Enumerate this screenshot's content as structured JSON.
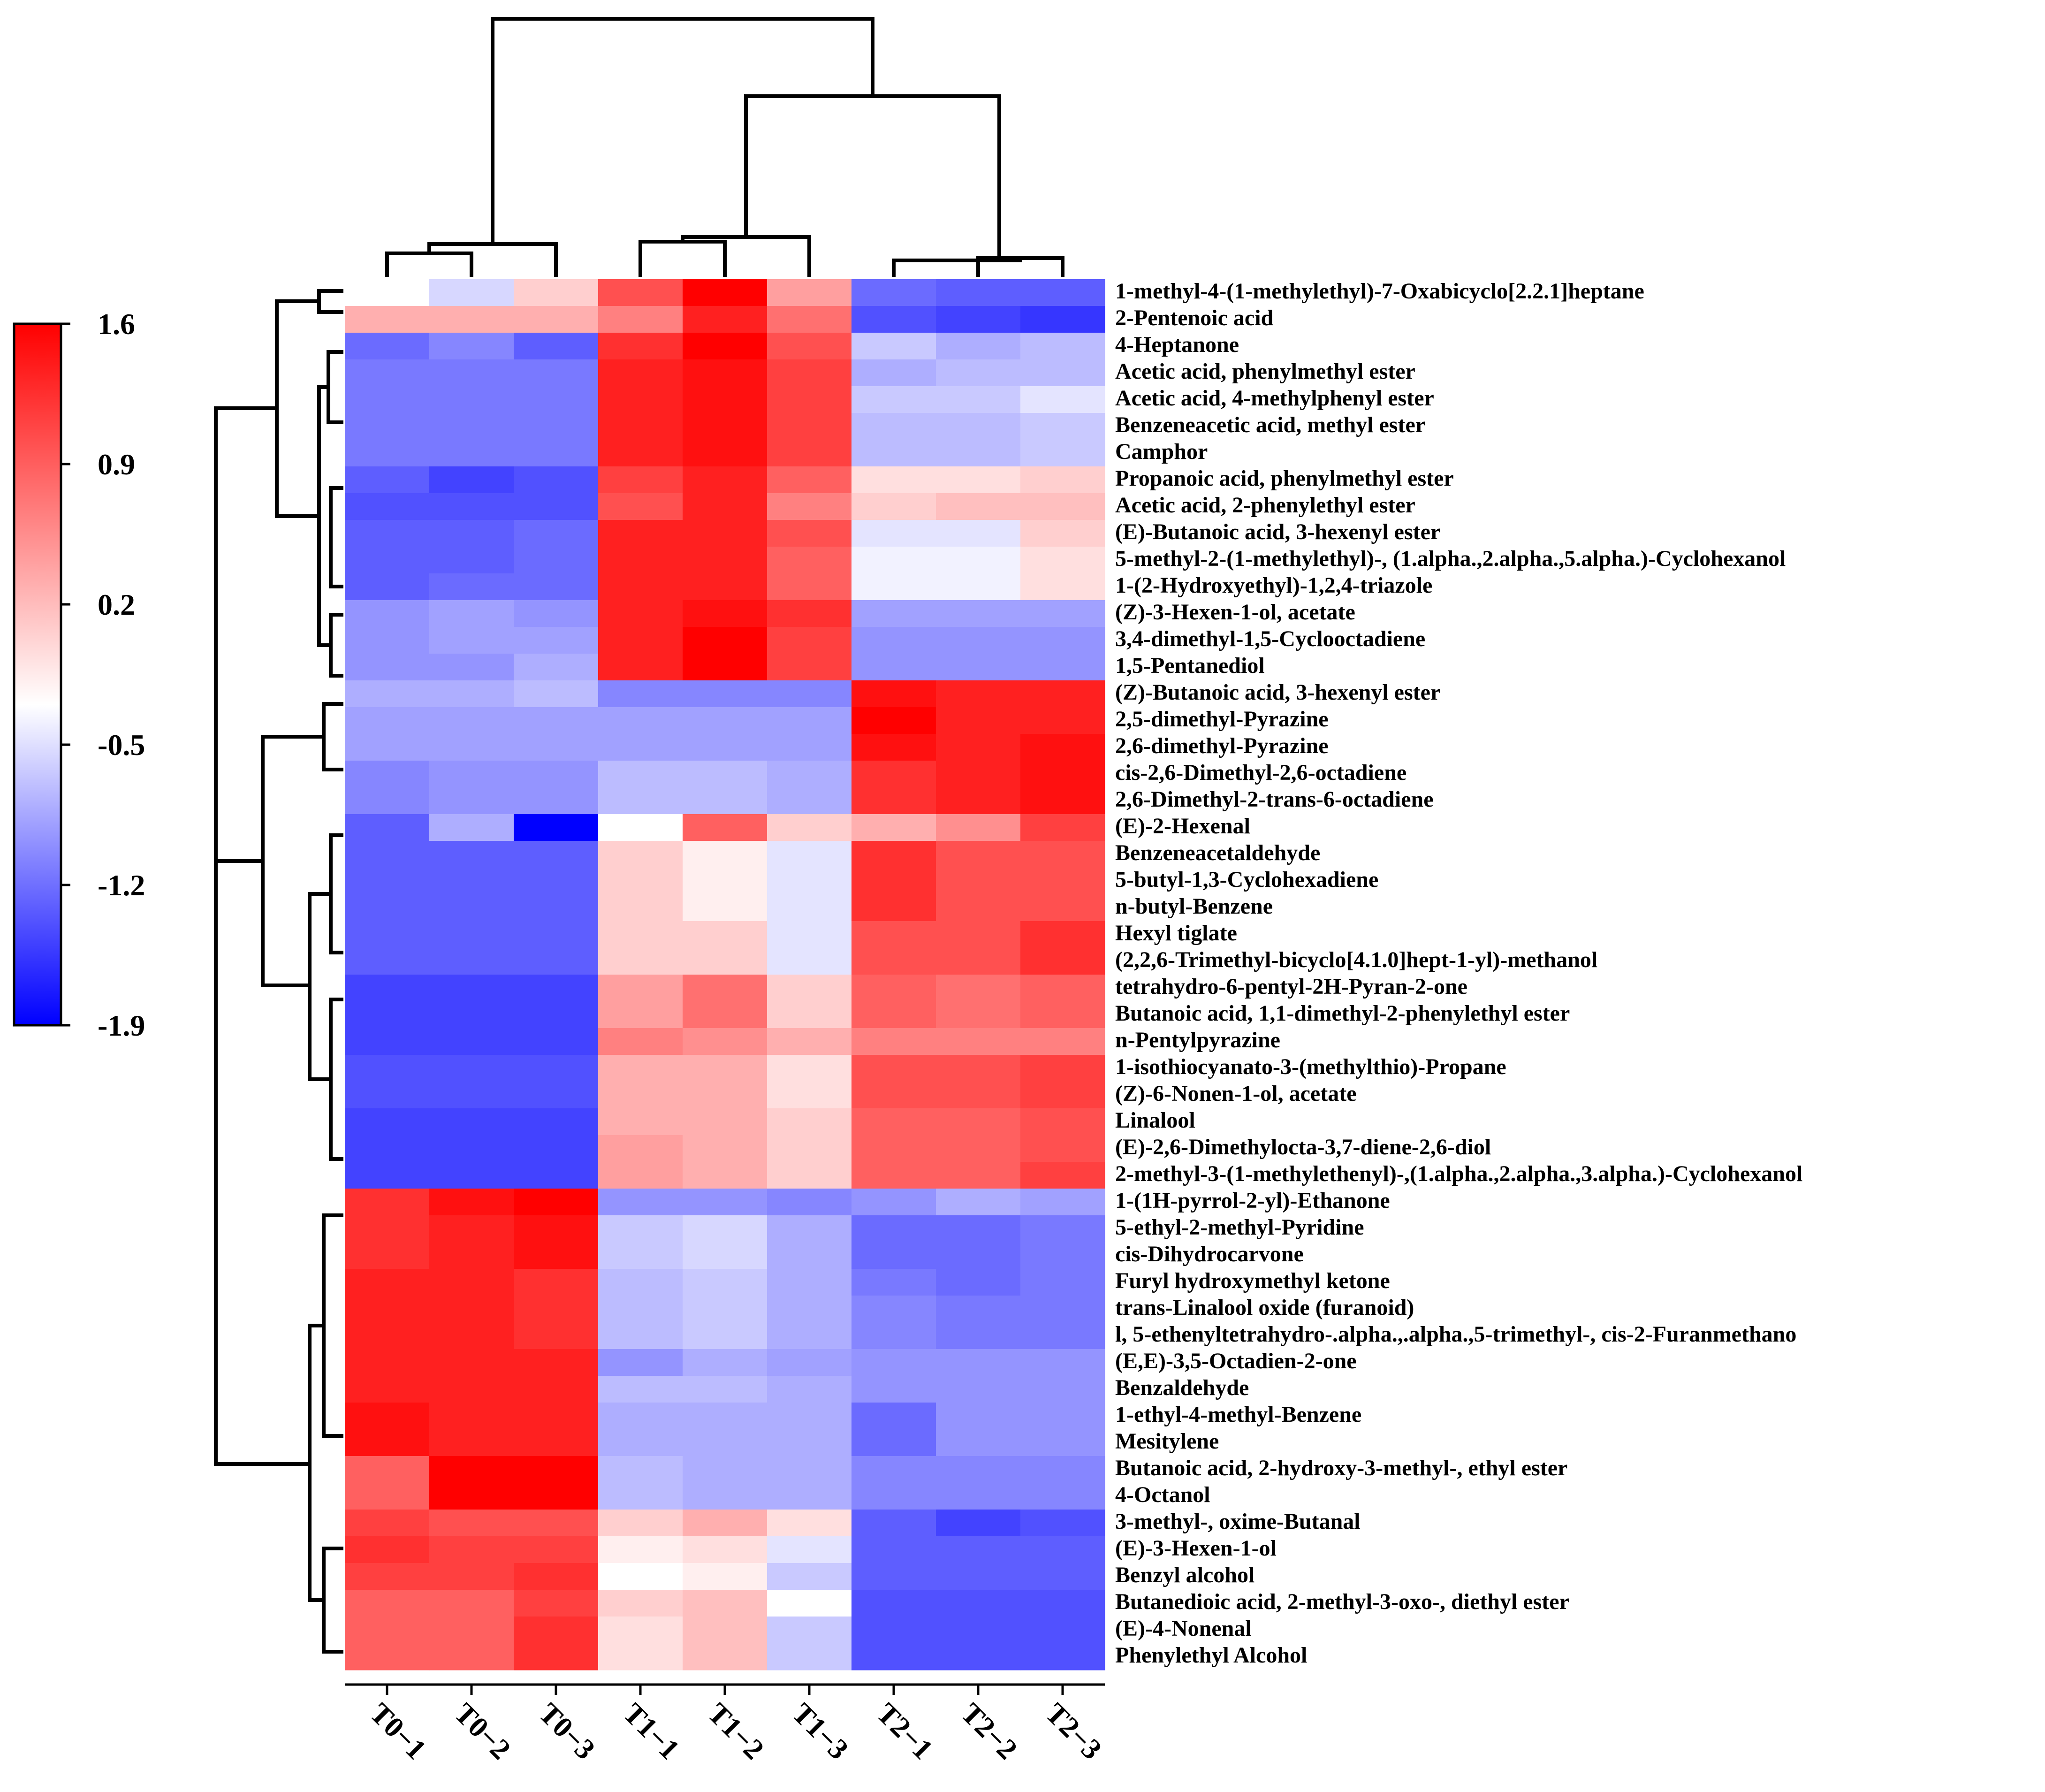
{
  "chart_data": {
    "type": "heatmap",
    "title": "",
    "columns": [
      "T0−1",
      "T0−2",
      "T0−3",
      "T1−1",
      "T1−2",
      "T1−3",
      "T2−1",
      "T2−2",
      "T2−3"
    ],
    "rows": [
      "1-methyl-4-(1-methylethyl)-7-Oxabicyclo[2.2.1]heptane",
      "2-Pentenoic acid",
      "4-Heptanone",
      "Acetic acid, phenylmethyl ester",
      "Acetic acid, 4-methylphenyl ester",
      "Benzeneacetic acid, methyl ester",
      "Camphor",
      "Propanoic acid, phenylmethyl ester",
      "Acetic acid, 2-phenylethyl ester",
      "(E)-Butanoic acid, 3-hexenyl ester",
      "5-methyl-2-(1-methylethyl)-, (1.alpha.,2.alpha.,5.alpha.)-Cyclohexanol",
      "1-(2-Hydroxyethyl)-1,2,4-triazole",
      "(Z)-3-Hexen-1-ol, acetate",
      "3,4-dimethyl-1,5-Cyclooctadiene",
      "1,5-Pentanediol",
      "(Z)-Butanoic acid, 3-hexenyl ester",
      "2,5-dimethyl-Pyrazine",
      "2,6-dimethyl-Pyrazine",
      "cis-2,6-Dimethyl-2,6-octadiene",
      "2,6-Dimethyl-2-trans-6-octadiene",
      "(E)-2-Hexenal",
      "Benzeneacetaldehyde",
      "5-butyl-1,3-Cyclohexadiene",
      "n-butyl-Benzene",
      "Hexyl tiglate",
      "(2,2,6-Trimethyl-bicyclo[4.1.0]hept-1-yl)-methanol",
      "tetrahydro-6-pentyl-2H-Pyran-2-one",
      "Butanoic acid, 1,1-dimethyl-2-phenylethyl ester",
      "n-Pentylpyrazine",
      "1-isothiocyanato-3-(methylthio)-Propane",
      "(Z)-6-Nonen-1-ol, acetate",
      "Linalool",
      "(E)-2,6-Dimethylocta-3,7-diene-2,6-diol",
      "2-methyl-3-(1-methylethenyl)-,(1.alpha.,2.alpha.,3.alpha.)-Cyclohexanol",
      "1-(1H-pyrrol-2-yl)-Ethanone",
      "5-ethyl-2-methyl-Pyridine",
      "cis-Dihydrocarvone",
      "Furyl hydroxymethyl ketone",
      "trans-Linalool oxide (furanoid)",
      "l, 5-ethenyltetrahydro-.alpha.,.alpha.,5-trimethyl-, cis-2-Furanmethano",
      "(E,E)-3,5-Octadien-2-one",
      "Benzaldehyde",
      "1-ethyl-4-methyl-Benzene",
      "Mesitylene",
      "Butanoic acid, 2-hydroxy-3-methyl-, ethyl ester",
      "4-Octanol",
      "3-methyl-, oxime-Butanal",
      "(E)-3-Hexen-1-ol",
      "Benzyl alcohol",
      "Butanedioic acid, 2-methyl-3-oxo-, diethyl ester",
      "(E)-4-Nonenal",
      "Phenylethyl Alcohol"
    ],
    "values": [
      [
        0.0,
        -0.3,
        0.3,
        1.1,
        1.6,
        0.6,
        -1.1,
        -1.2,
        -1.2
      ],
      [
        0.5,
        0.5,
        0.5,
        0.8,
        1.4,
        0.9,
        -1.3,
        -1.4,
        -1.5
      ],
      [
        -1.1,
        -0.9,
        -1.2,
        1.3,
        1.6,
        1.1,
        -0.4,
        -0.6,
        -0.5
      ],
      [
        -1.0,
        -1.0,
        -1.0,
        1.4,
        1.5,
        1.2,
        -0.6,
        -0.5,
        -0.5
      ],
      [
        -1.0,
        -1.0,
        -1.0,
        1.4,
        1.5,
        1.2,
        -0.4,
        -0.4,
        -0.2
      ],
      [
        -1.0,
        -1.0,
        -1.0,
        1.4,
        1.5,
        1.2,
        -0.5,
        -0.5,
        -0.4
      ],
      [
        -1.0,
        -1.0,
        -1.0,
        1.4,
        1.5,
        1.2,
        -0.5,
        -0.5,
        -0.4
      ],
      [
        -1.2,
        -1.4,
        -1.3,
        1.2,
        1.4,
        1.0,
        0.2,
        0.2,
        0.3
      ],
      [
        -1.3,
        -1.3,
        -1.3,
        1.1,
        1.4,
        0.8,
        0.3,
        0.4,
        0.4
      ],
      [
        -1.2,
        -1.2,
        -1.1,
        1.4,
        1.4,
        1.1,
        -0.2,
        -0.2,
        0.3
      ],
      [
        -1.2,
        -1.2,
        -1.1,
        1.4,
        1.4,
        1.0,
        -0.1,
        -0.1,
        0.2
      ],
      [
        -1.2,
        -1.1,
        -1.1,
        1.4,
        1.4,
        1.0,
        -0.1,
        -0.1,
        0.2
      ],
      [
        -0.8,
        -0.7,
        -0.8,
        1.4,
        1.5,
        1.3,
        -0.7,
        -0.7,
        -0.7
      ],
      [
        -0.8,
        -0.7,
        -0.7,
        1.4,
        1.6,
        1.2,
        -0.8,
        -0.8,
        -0.8
      ],
      [
        -0.8,
        -0.8,
        -0.6,
        1.4,
        1.6,
        1.2,
        -0.8,
        -0.8,
        -0.8
      ],
      [
        -0.6,
        -0.6,
        -0.5,
        -0.9,
        -0.9,
        -0.9,
        1.5,
        1.4,
        1.4
      ],
      [
        -0.7,
        -0.7,
        -0.7,
        -0.7,
        -0.7,
        -0.7,
        1.6,
        1.4,
        1.4
      ],
      [
        -0.7,
        -0.7,
        -0.7,
        -0.7,
        -0.7,
        -0.7,
        1.5,
        1.4,
        1.5
      ],
      [
        -0.9,
        -0.8,
        -0.8,
        -0.5,
        -0.5,
        -0.6,
        1.3,
        1.4,
        1.5
      ],
      [
        -0.9,
        -0.8,
        -0.8,
        -0.5,
        -0.5,
        -0.6,
        1.3,
        1.4,
        1.5
      ],
      [
        -1.2,
        -0.6,
        -1.9,
        0.0,
        1.0,
        0.3,
        0.5,
        0.7,
        1.2
      ],
      [
        -1.2,
        -1.2,
        -1.2,
        0.3,
        0.1,
        -0.2,
        1.3,
        1.1,
        1.1
      ],
      [
        -1.2,
        -1.2,
        -1.2,
        0.3,
        0.1,
        -0.2,
        1.3,
        1.1,
        1.1
      ],
      [
        -1.2,
        -1.2,
        -1.2,
        0.3,
        0.1,
        -0.2,
        1.3,
        1.1,
        1.1
      ],
      [
        -1.2,
        -1.2,
        -1.2,
        0.3,
        0.3,
        -0.2,
        1.1,
        1.1,
        1.3
      ],
      [
        -1.2,
        -1.2,
        -1.2,
        0.3,
        0.3,
        -0.2,
        1.1,
        1.1,
        1.3
      ],
      [
        -1.4,
        -1.4,
        -1.4,
        0.6,
        0.9,
        0.3,
        1.0,
        0.9,
        1.0
      ],
      [
        -1.4,
        -1.4,
        -1.4,
        0.6,
        0.9,
        0.3,
        1.0,
        0.9,
        1.0
      ],
      [
        -1.4,
        -1.4,
        -1.4,
        0.8,
        0.7,
        0.5,
        0.8,
        0.8,
        0.8
      ],
      [
        -1.3,
        -1.3,
        -1.3,
        0.5,
        0.5,
        0.2,
        1.1,
        1.1,
        1.2
      ],
      [
        -1.3,
        -1.3,
        -1.3,
        0.5,
        0.5,
        0.2,
        1.1,
        1.1,
        1.2
      ],
      [
        -1.4,
        -1.4,
        -1.4,
        0.5,
        0.5,
        0.3,
        1.0,
        1.0,
        1.1
      ],
      [
        -1.4,
        -1.4,
        -1.4,
        0.6,
        0.5,
        0.3,
        1.0,
        1.0,
        1.1
      ],
      [
        -1.4,
        -1.4,
        -1.4,
        0.6,
        0.5,
        0.3,
        1.0,
        1.0,
        1.2
      ],
      [
        1.3,
        1.5,
        1.6,
        -0.8,
        -0.8,
        -0.9,
        -0.8,
        -0.6,
        -0.7
      ],
      [
        1.3,
        1.4,
        1.5,
        -0.4,
        -0.3,
        -0.6,
        -1.1,
        -1.1,
        -1.0
      ],
      [
        1.3,
        1.4,
        1.5,
        -0.4,
        -0.3,
        -0.6,
        -1.1,
        -1.1,
        -1.0
      ],
      [
        1.4,
        1.4,
        1.3,
        -0.5,
        -0.4,
        -0.6,
        -1.0,
        -1.1,
        -1.0
      ],
      [
        1.4,
        1.4,
        1.3,
        -0.5,
        -0.4,
        -0.6,
        -0.9,
        -1.0,
        -1.0
      ],
      [
        1.4,
        1.4,
        1.3,
        -0.5,
        -0.4,
        -0.6,
        -0.9,
        -1.0,
        -1.0
      ],
      [
        1.4,
        1.4,
        1.4,
        -0.8,
        -0.6,
        -0.7,
        -0.8,
        -0.8,
        -0.8
      ],
      [
        1.4,
        1.4,
        1.4,
        -0.5,
        -0.5,
        -0.6,
        -0.8,
        -0.8,
        -0.8
      ],
      [
        1.5,
        1.4,
        1.4,
        -0.6,
        -0.6,
        -0.6,
        -1.1,
        -0.8,
        -0.8
      ],
      [
        1.5,
        1.4,
        1.4,
        -0.6,
        -0.6,
        -0.6,
        -1.1,
        -0.8,
        -0.8
      ],
      [
        1.0,
        1.6,
        1.6,
        -0.5,
        -0.6,
        -0.6,
        -0.9,
        -0.9,
        -0.9
      ],
      [
        1.0,
        1.6,
        1.6,
        -0.5,
        -0.6,
        -0.6,
        -0.9,
        -0.9,
        -0.9
      ],
      [
        1.2,
        1.1,
        1.1,
        0.3,
        0.5,
        0.2,
        -1.2,
        -1.4,
        -1.3
      ],
      [
        1.3,
        1.2,
        1.2,
        0.1,
        0.2,
        -0.2,
        -1.2,
        -1.2,
        -1.2
      ],
      [
        1.2,
        1.2,
        1.3,
        0.0,
        0.1,
        -0.4,
        -1.2,
        -1.2,
        -1.2
      ],
      [
        1.0,
        1.0,
        1.2,
        0.3,
        0.4,
        0.0,
        -1.3,
        -1.3,
        -1.3
      ],
      [
        1.0,
        1.0,
        1.3,
        0.2,
        0.4,
        -0.4,
        -1.3,
        -1.3,
        -1.3
      ],
      [
        1.0,
        1.0,
        1.3,
        0.2,
        0.4,
        -0.4,
        -1.3,
        -1.3,
        -1.3
      ]
    ],
    "color_scale": {
      "min": -1.9,
      "max": 1.6,
      "low_color": "#0000ff",
      "mid_color": "#ffffff",
      "high_color": "#ff0000",
      "ticks": [
        "1.6",
        "0.9",
        "0.2",
        "-0.5",
        "-1.2",
        "-1.9"
      ],
      "placement": "left"
    },
    "dendrograms": {
      "columns": "top",
      "rows": "left"
    }
  }
}
